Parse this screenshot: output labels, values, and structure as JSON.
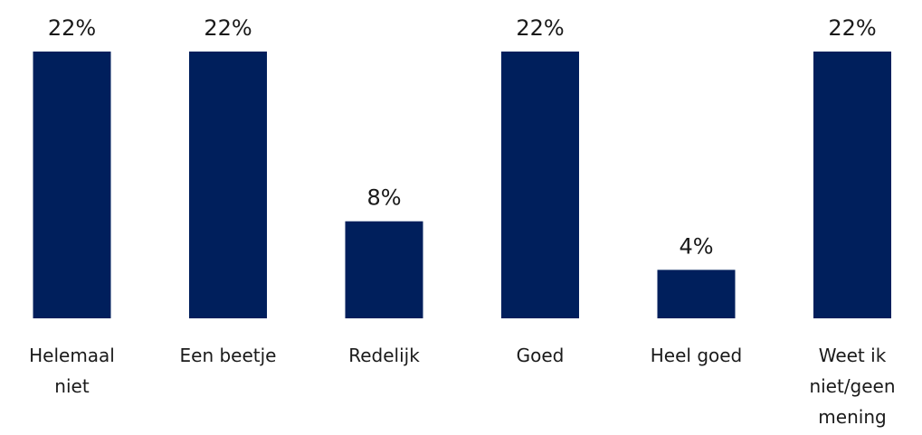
{
  "chart_data": {
    "type": "bar",
    "title": "",
    "xlabel": "",
    "ylabel": "",
    "categories": [
      [
        "Helemaal",
        "niet"
      ],
      [
        "Een beetje"
      ],
      [
        "Redelijk"
      ],
      [
        "Goed"
      ],
      [
        "Heel goed"
      ],
      [
        "Weet ik",
        "niet/geen",
        "mening"
      ]
    ],
    "values": [
      22,
      22,
      8,
      22,
      4,
      22
    ],
    "value_labels": [
      "22%",
      "22%",
      "8%",
      "22%",
      "4%",
      "22%"
    ],
    "unit": "%",
    "ylim": [
      0,
      22
    ],
    "grid": false,
    "legend": "none",
    "colors": {
      "bar": "#001f5c"
    }
  }
}
